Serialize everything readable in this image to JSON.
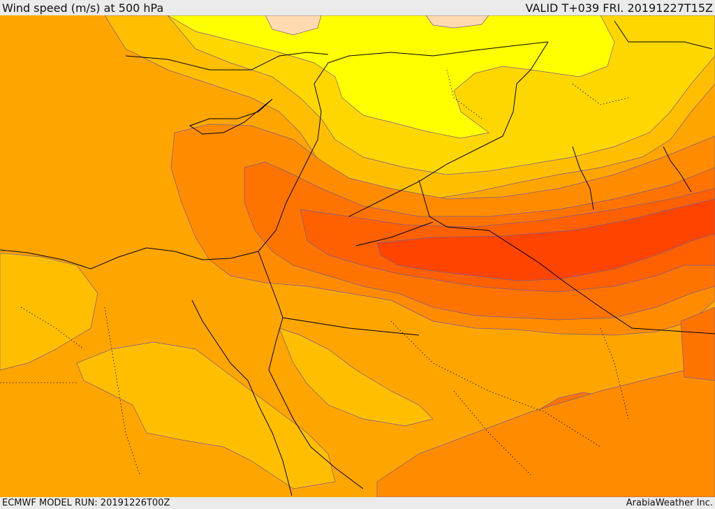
{
  "header": {
    "title": "Wind speed (m/s) at 500 hPa",
    "valid_time": "VALID T+039 FRI. 20191227T15Z"
  },
  "footer": {
    "model_run": "ECMWF MODEL RUN: 20191226T00Z",
    "credit": "ArabiaWeather Inc."
  },
  "map": {
    "variable": "wind speed",
    "level": "500 hPa",
    "colors": {
      "lightest": "#ffdab0",
      "yellow": "#ffff00",
      "gold": "#ffd700",
      "amber": "#ffbf00",
      "orange_light": "#ffa500",
      "orange": "#ff8c00",
      "orange_dark": "#ff7400",
      "red_orange": "#ff6000",
      "red": "#ff4400",
      "border": "#000000"
    }
  }
}
